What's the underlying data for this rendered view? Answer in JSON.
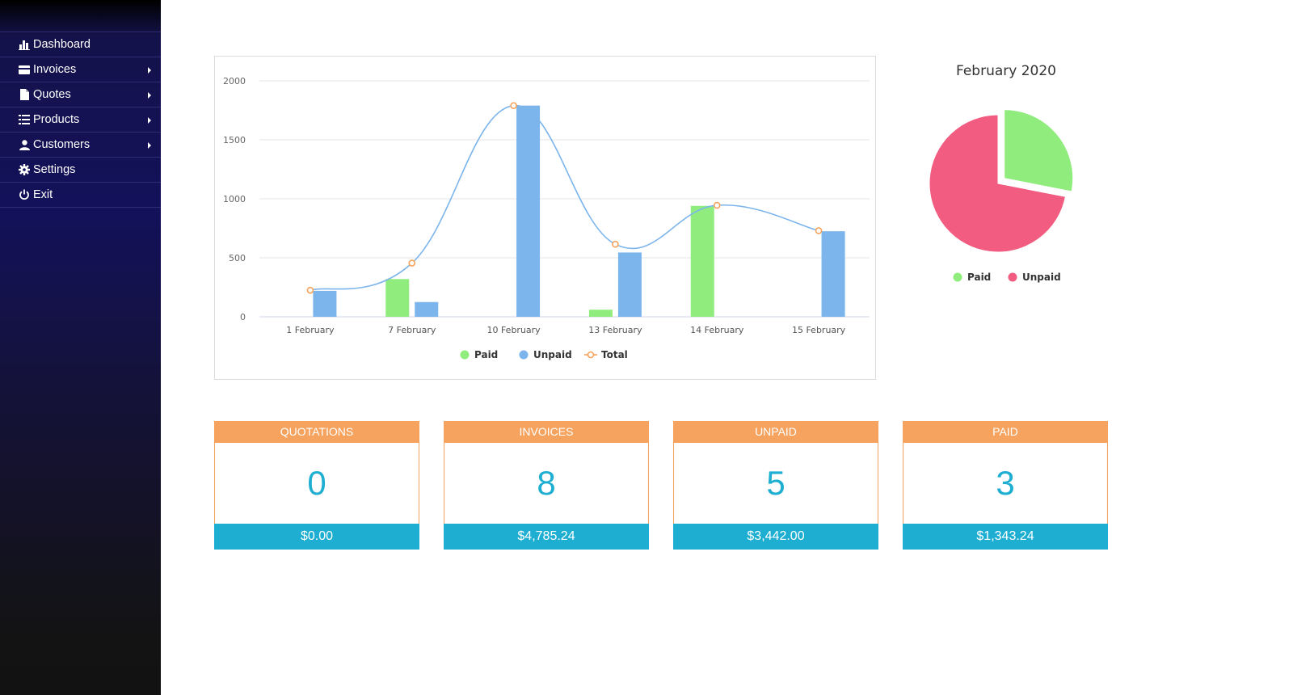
{
  "sidebar": {
    "items": [
      {
        "label": "Dashboard",
        "icon": "bar-chart-icon",
        "has_submenu": false
      },
      {
        "label": "Invoices",
        "icon": "credit-card-icon",
        "has_submenu": true
      },
      {
        "label": "Quotes",
        "icon": "file-icon",
        "has_submenu": true
      },
      {
        "label": "Products",
        "icon": "list-icon",
        "has_submenu": true
      },
      {
        "label": "Customers",
        "icon": "user-icon",
        "has_submenu": true
      },
      {
        "label": "Settings",
        "icon": "gear-icon",
        "has_submenu": false
      },
      {
        "label": "Exit",
        "icon": "power-icon",
        "has_submenu": false
      }
    ]
  },
  "colors": {
    "paid": "#90ed7d",
    "unpaid": "#7cb5ec",
    "total": "#f7a35c",
    "pie_unpaid": "#f15c80",
    "stat_header": "#f5a35e",
    "stat_accent": "#1eaed1"
  },
  "chart_data": [
    {
      "type": "bar",
      "categories": [
        "1 February",
        "7 February",
        "10 February",
        "13 February",
        "14 February",
        "15 February"
      ],
      "series": [
        {
          "name": "Paid",
          "type": "bar",
          "values": [
            0,
            320,
            0,
            60,
            940,
            0
          ]
        },
        {
          "name": "Unpaid",
          "type": "bar",
          "values": [
            220,
            125,
            1790,
            545,
            0,
            725
          ]
        },
        {
          "name": "Total",
          "type": "line",
          "values": [
            225,
            455,
            1790,
            615,
            945,
            730
          ]
        }
      ],
      "ylim": [
        0,
        2000
      ],
      "yticks": [
        0,
        500,
        1000,
        1500,
        2000
      ],
      "grid": true,
      "legend": "bottom-center"
    },
    {
      "type": "pie",
      "title": "February 2020",
      "series": [
        {
          "name": "Paid",
          "value": 1343.24
        },
        {
          "name": "Unpaid",
          "value": 3442.0
        }
      ],
      "legend": "bottom-center"
    }
  ],
  "stats": [
    {
      "title": "QUOTATIONS",
      "count": "0",
      "amount": "$0.00"
    },
    {
      "title": "INVOICES",
      "count": "8",
      "amount": "$4,785.24"
    },
    {
      "title": "UNPAID",
      "count": "5",
      "amount": "$3,442.00"
    },
    {
      "title": "PAID",
      "count": "3",
      "amount": "$1,343.24"
    }
  ]
}
